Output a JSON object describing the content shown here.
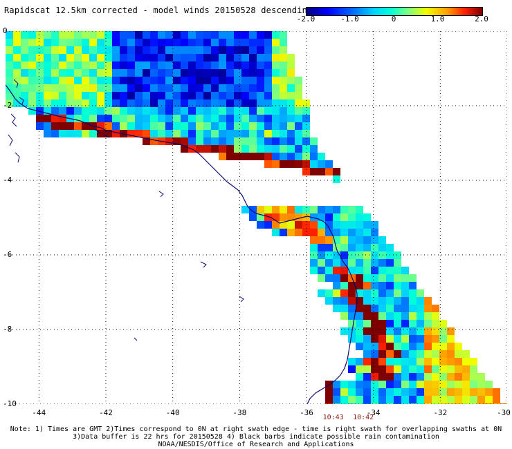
{
  "title": "Rapidscat 12.5km corrected - model winds 20150528 descending",
  "colorbar": {
    "labels": [
      {
        "text": "-2.0",
        "value": -2.0
      },
      {
        "text": "-1.0",
        "value": -1.0
      },
      {
        "text": "0",
        "value": 0
      },
      {
        "text": "1.0",
        "value": 1.0
      },
      {
        "text": "2.0",
        "value": 2.0
      }
    ],
    "range": [
      -2.0,
      2.0
    ],
    "colors": [
      "#00007f",
      "#0000ff",
      "#00d0ff",
      "#7fff7f",
      "#f0ff00",
      "#ffa000",
      "#ff2000",
      "#7f0000"
    ]
  },
  "map": {
    "lon_range": [
      -45,
      -30
    ],
    "lat_range": [
      -10,
      0
    ],
    "lat_ticks": [
      {
        "text": "0",
        "value": 0
      },
      {
        "text": "-2",
        "value": -2
      },
      {
        "text": "-4",
        "value": -4
      },
      {
        "text": "-6",
        "value": -6
      },
      {
        "text": "-8",
        "value": -8
      },
      {
        "text": "-10",
        "value": -10
      }
    ],
    "lon_ticks": [
      {
        "text": "-44",
        "value": -44
      },
      {
        "text": "-42",
        "value": -42
      },
      {
        "text": "-40",
        "value": -40
      },
      {
        "text": "-38",
        "value": -38
      },
      {
        "text": "-36",
        "value": -36
      },
      {
        "text": "-34",
        "value": -34
      },
      {
        "text": "-32",
        "value": -32
      },
      {
        "text": "-30",
        "value": -30
      }
    ],
    "coastline_color": "#0a0a6e",
    "grid": true
  },
  "swath_times": [
    {
      "text": "10:43",
      "lon": -35.2
    },
    {
      "text": "10:42",
      "lon": -34.3
    }
  ],
  "notes": {
    "line1": "Note: 1) Times are GMT 2)Times correspond to 0N at right swath edge - time is right swath for overlapping swaths at 0N",
    "line2": "3)Data buffer is 22 hrs for 20150528 4) Black barbs indicate possible rain contamination",
    "line3": "NOAA/NESDIS/Office of Research and Applications"
  }
}
